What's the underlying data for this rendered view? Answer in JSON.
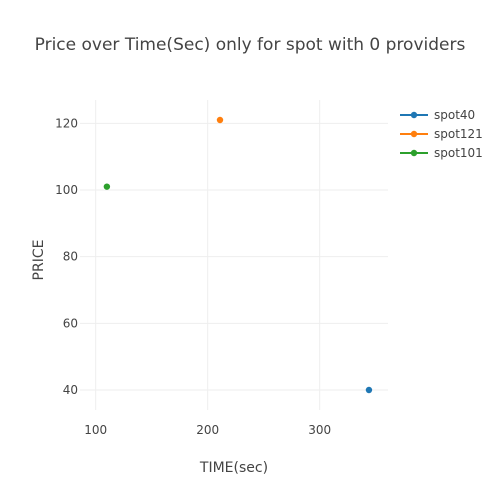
{
  "chart_data": {
    "type": "scatter",
    "title": "Price over Time(Sec) only for spot with 0 providers",
    "xlabel": "TIME(sec)",
    "ylabel": "PRICE",
    "xlim": [
      86,
      361
    ],
    "ylim": [
      34,
      127
    ],
    "x_ticks": [
      100,
      200,
      300
    ],
    "y_ticks": [
      40,
      60,
      80,
      100,
      120
    ],
    "grid": true,
    "legend_position": "top-right",
    "series": [
      {
        "name": "spot40",
        "color": "#1f77b4",
        "points": [
          [
            344,
            40
          ]
        ]
      },
      {
        "name": "spot121",
        "color": "#ff7f0e",
        "points": [
          [
            211,
            121
          ]
        ]
      },
      {
        "name": "spot101",
        "color": "#2ca02c",
        "points": [
          [
            110,
            101
          ]
        ]
      }
    ]
  }
}
